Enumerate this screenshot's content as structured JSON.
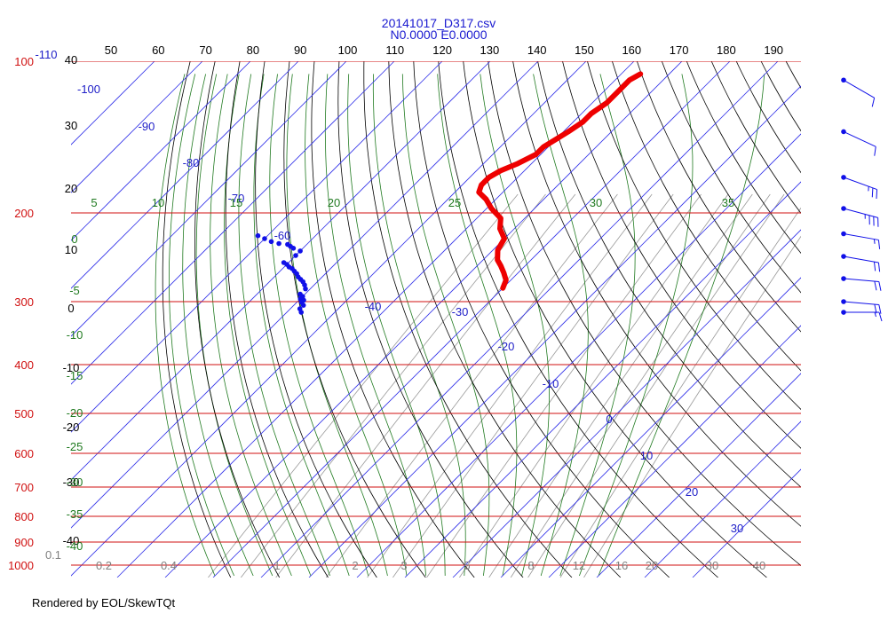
{
  "chart_data": {
    "type": "skew-t",
    "title": "20141017_D317.csv",
    "subtitle": "N0.0000 E0.0000",
    "pressure_levels": [
      100,
      200,
      300,
      400,
      500,
      600,
      700,
      800,
      900,
      1000
    ],
    "temperature_ticks_top": [
      50,
      60,
      70,
      80,
      90,
      100,
      110,
      120,
      130,
      140,
      150,
      160,
      170,
      180,
      190
    ],
    "isotherm_labels": [
      -110,
      -100,
      -90,
      -80,
      -70,
      -60,
      -40,
      -30,
      -20,
      -10,
      0,
      10,
      20,
      30
    ],
    "dry_adiabat_labels": [
      40,
      30,
      20,
      10,
      0,
      -10,
      -20,
      -30,
      -40
    ],
    "moist_adiabat_labels": [
      5,
      10,
      15,
      20,
      25,
      30,
      35
    ],
    "left_green_labels": [
      0,
      -5,
      -10,
      -15,
      -20,
      -25,
      -30,
      -35,
      -40
    ],
    "mixing_ratio_labels": [
      "0.1",
      "0.2",
      "0.4",
      "1",
      "2",
      "3",
      "5",
      "8",
      "12",
      "16",
      "20",
      "30",
      "40"
    ],
    "temperature_profile": [
      [
        106,
        -56
      ],
      [
        109,
        -57
      ],
      [
        115,
        -57
      ],
      [
        121,
        -57
      ],
      [
        127,
        -58
      ],
      [
        132,
        -58
      ],
      [
        138,
        -59
      ],
      [
        143,
        -60
      ],
      [
        148,
        -61
      ],
      [
        153,
        -61
      ],
      [
        160,
        -63
      ],
      [
        165,
        -65
      ],
      [
        170,
        -66
      ],
      [
        176,
        -66
      ],
      [
        182,
        -65
      ],
      [
        188,
        -62
      ],
      [
        196,
        -59
      ],
      [
        205,
        -55
      ],
      [
        215,
        -53
      ],
      [
        225,
        -50
      ],
      [
        237,
        -49
      ],
      [
        248,
        -47
      ],
      [
        255,
        -45
      ],
      [
        263,
        -43
      ],
      [
        272,
        -41
      ],
      [
        282,
        -40
      ]
    ],
    "dewpoint_profile": [
      [
        222,
        -102
      ],
      [
        225,
        -100
      ],
      [
        228,
        -98
      ],
      [
        230,
        -96
      ],
      [
        231,
        -94
      ],
      [
        233,
        -93
      ],
      [
        235,
        -92
      ],
      [
        238,
        -90
      ],
      [
        243,
        -90
      ],
      [
        251,
        -91
      ],
      [
        253,
        -90
      ],
      [
        256,
        -89
      ],
      [
        258,
        -88
      ],
      [
        261,
        -87
      ],
      [
        264,
        -86
      ],
      [
        268,
        -85
      ],
      [
        271,
        -84
      ],
      [
        274,
        -83
      ],
      [
        278,
        -82
      ],
      [
        283,
        -81
      ],
      [
        290,
        -81
      ],
      [
        293,
        -80
      ],
      [
        296,
        -80
      ],
      [
        298,
        -79
      ],
      [
        301,
        -79
      ],
      [
        305,
        -78
      ],
      [
        310,
        -78
      ],
      [
        315,
        -77
      ]
    ],
    "wind_profile": [
      [
        109,
        300,
        10
      ],
      [
        138,
        295,
        10
      ],
      [
        170,
        290,
        25
      ],
      [
        196,
        285,
        35
      ],
      [
        220,
        280,
        15
      ],
      [
        244,
        280,
        20
      ],
      [
        270,
        275,
        20
      ],
      [
        300,
        275,
        20
      ],
      [
        315,
        270,
        15
      ]
    ]
  },
  "footer": "Rendered by EOL/SkewTQt"
}
